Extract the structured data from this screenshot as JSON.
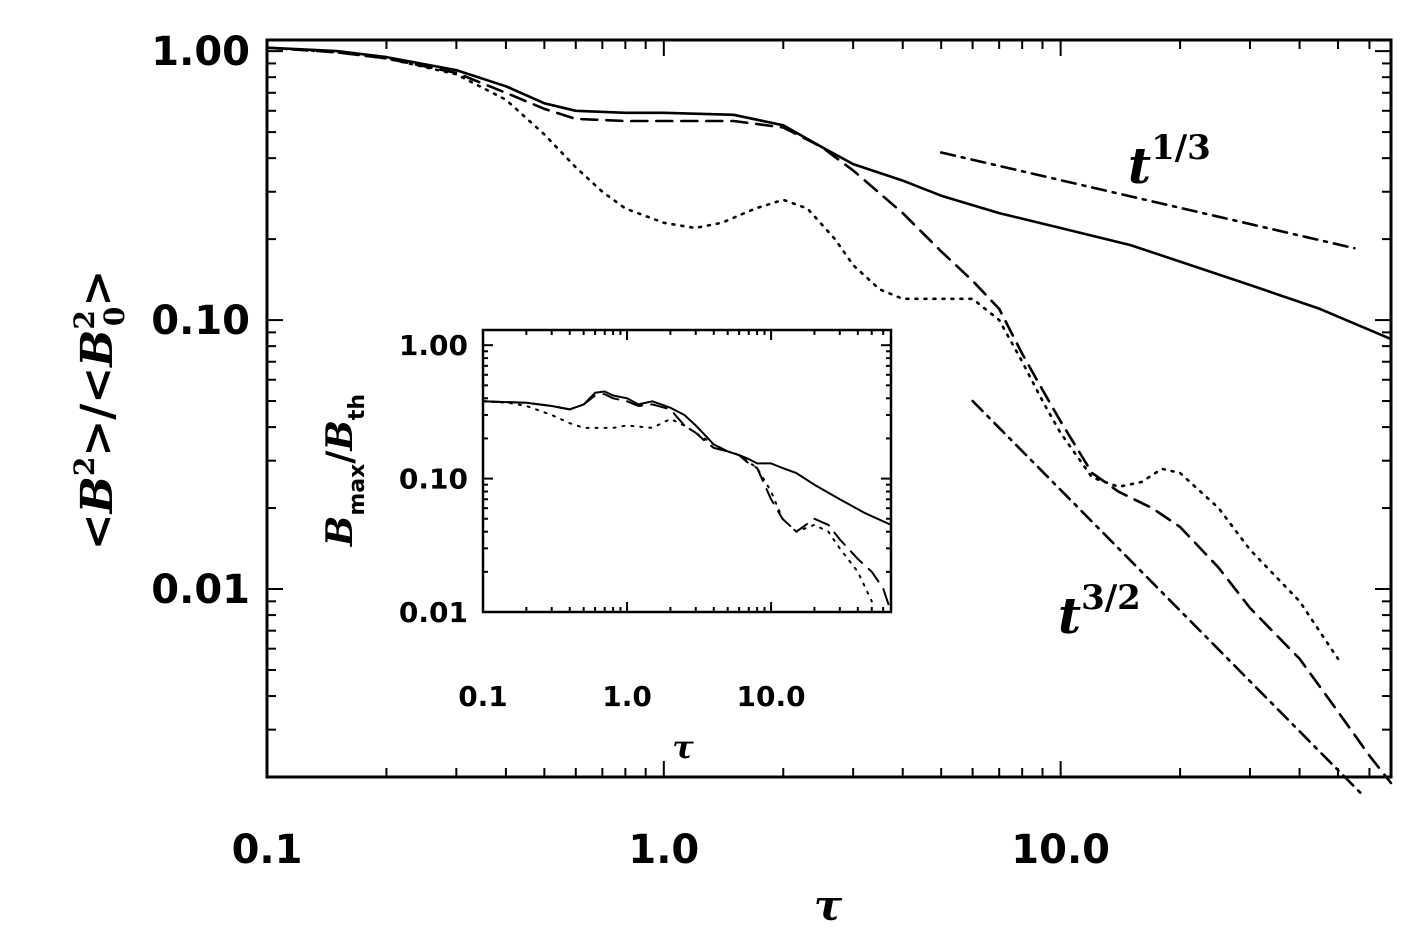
{
  "chart_data": [
    {
      "id": "main",
      "type": "line",
      "xscale": "log",
      "yscale": "log",
      "xlim": [
        0.1,
        68
      ],
      "ylim": [
        0.002,
        1.1
      ],
      "xticks": [
        0.1,
        1.0,
        10.0
      ],
      "xtick_labels": [
        "0.1",
        "1.0",
        "10.0"
      ],
      "yticks": [
        1.0,
        0.1,
        0.01
      ],
      "ytick_labels": [
        "1.00",
        "0.10",
        "0.01"
      ],
      "xlabel": "τ",
      "ylabel": "<B²>/<B₀²>",
      "series": [
        {
          "name": "solid",
          "dash": "solid",
          "x": [
            0.1,
            0.15,
            0.2,
            0.3,
            0.4,
            0.5,
            0.6,
            0.8,
            1.0,
            1.5,
            2.0,
            2.5,
            3.0,
            4.0,
            5.0,
            7.0,
            10.0,
            15.0,
            20.0,
            30.0,
            45.0,
            68.0
          ],
          "y": [
            1.03,
            1.0,
            0.95,
            0.85,
            0.74,
            0.64,
            0.6,
            0.59,
            0.59,
            0.58,
            0.53,
            0.44,
            0.38,
            0.33,
            0.29,
            0.25,
            0.22,
            0.19,
            0.165,
            0.135,
            0.11,
            0.085
          ]
        },
        {
          "name": "dashed",
          "dash": "dashed",
          "x": [
            0.1,
            0.15,
            0.2,
            0.3,
            0.4,
            0.5,
            0.6,
            0.8,
            1.0,
            1.5,
            2.0,
            2.5,
            3.0,
            4.0,
            5.0,
            6.0,
            7.0,
            8.0,
            9.0,
            10.0,
            12.0,
            14.0,
            17.0,
            20.0,
            25.0,
            30.0,
            40.0,
            50.0,
            60.0,
            68.0
          ],
          "y": [
            1.03,
            0.99,
            0.94,
            0.83,
            0.7,
            0.61,
            0.56,
            0.55,
            0.55,
            0.55,
            0.52,
            0.44,
            0.36,
            0.25,
            0.18,
            0.14,
            0.11,
            0.075,
            0.055,
            0.042,
            0.027,
            0.023,
            0.02,
            0.017,
            0.012,
            0.0085,
            0.0055,
            0.0035,
            0.0024,
            0.0019
          ]
        },
        {
          "name": "dotted",
          "dash": "dotted",
          "x": [
            0.1,
            0.15,
            0.2,
            0.3,
            0.4,
            0.5,
            0.6,
            0.7,
            0.8,
            1.0,
            1.2,
            1.4,
            1.7,
            2.0,
            2.3,
            2.7,
            3.0,
            3.5,
            4.0,
            5.0,
            6.0,
            7.0,
            8.0,
            9.0,
            10.0,
            12.0,
            14.0,
            16.0,
            18.0,
            20.0,
            25.0,
            30.0,
            40.0,
            50.0
          ],
          "y": [
            1.03,
            0.99,
            0.94,
            0.82,
            0.66,
            0.49,
            0.37,
            0.3,
            0.26,
            0.23,
            0.22,
            0.23,
            0.26,
            0.28,
            0.26,
            0.2,
            0.16,
            0.13,
            0.12,
            0.12,
            0.12,
            0.1,
            0.07,
            0.05,
            0.038,
            0.026,
            0.024,
            0.025,
            0.028,
            0.027,
            0.02,
            0.014,
            0.009,
            0.0055
          ]
        },
        {
          "name": "fit-t-1/3",
          "dash": "dashdot",
          "x": [
            5.0,
            55.0
          ],
          "y": [
            0.42,
            0.185
          ]
        },
        {
          "name": "fit-t-3/2",
          "dash": "dashdot",
          "x": [
            6.0,
            58.0
          ],
          "y": [
            0.05,
            0.0017
          ]
        }
      ],
      "annotations": [
        {
          "base": "t",
          "sup": "1/3"
        },
        {
          "base": "t",
          "sup": "3/2"
        }
      ]
    },
    {
      "id": "inset",
      "type": "line",
      "xscale": "log",
      "yscale": "log",
      "xlim": [
        0.1,
        68
      ],
      "ylim": [
        0.01,
        1.3
      ],
      "xticks": [
        0.1,
        1.0,
        10.0
      ],
      "xtick_labels": [
        "0.1",
        "1.0",
        "10.0"
      ],
      "yticks": [
        1.0,
        0.1,
        0.01
      ],
      "ytick_labels": [
        "1.00",
        "0.10",
        "0.01"
      ],
      "xlabel": "τ",
      "ylabel": "B_max/B_th",
      "series": [
        {
          "name": "solid",
          "dash": "solid",
          "x": [
            0.1,
            0.2,
            0.3,
            0.4,
            0.5,
            0.6,
            0.7,
            0.8,
            1.0,
            1.2,
            1.5,
            2.0,
            2.5,
            3.0,
            3.5,
            4.0,
            5.0,
            6.0,
            7.0,
            8.0,
            10.0,
            12.0,
            15.0,
            20.0,
            30.0,
            45.0,
            68.0
          ],
          "y": [
            0.38,
            0.37,
            0.35,
            0.33,
            0.36,
            0.44,
            0.45,
            0.42,
            0.4,
            0.36,
            0.38,
            0.34,
            0.3,
            0.25,
            0.21,
            0.18,
            0.16,
            0.15,
            0.14,
            0.13,
            0.13,
            0.12,
            0.11,
            0.09,
            0.07,
            0.055,
            0.045
          ]
        },
        {
          "name": "dashed",
          "dash": "dashed",
          "x": [
            0.1,
            0.2,
            0.3,
            0.4,
            0.5,
            0.6,
            0.7,
            0.8,
            1.0,
            1.2,
            1.5,
            2.0,
            2.5,
            3.0,
            3.5,
            4.0,
            5.0,
            6.0,
            7.0,
            8.0,
            10.0,
            12.0,
            15.0,
            20.0,
            25.0,
            30.0,
            40.0,
            50.0,
            60.0,
            68.0
          ],
          "y": [
            0.38,
            0.37,
            0.35,
            0.33,
            0.36,
            0.42,
            0.43,
            0.4,
            0.38,
            0.35,
            0.36,
            0.33,
            0.25,
            0.22,
            0.19,
            0.17,
            0.16,
            0.15,
            0.13,
            0.12,
            0.07,
            0.05,
            0.04,
            0.05,
            0.045,
            0.035,
            0.025,
            0.02,
            0.015,
            0.01
          ]
        },
        {
          "name": "dotted",
          "dash": "dotted",
          "x": [
            0.1,
            0.15,
            0.2,
            0.3,
            0.4,
            0.5,
            0.6,
            0.8,
            1.0,
            1.5,
            2.0,
            2.5,
            3.0,
            4.0,
            5.0,
            6.0,
            8.0,
            10.0,
            12.0,
            15.0,
            20.0,
            25.0,
            30.0,
            40.0,
            50.0
          ],
          "y": [
            0.38,
            0.37,
            0.35,
            0.3,
            0.26,
            0.24,
            0.24,
            0.24,
            0.25,
            0.24,
            0.28,
            0.25,
            0.22,
            0.18,
            0.16,
            0.15,
            0.12,
            0.08,
            0.05,
            0.04,
            0.045,
            0.04,
            0.03,
            0.02,
            0.012
          ]
        }
      ]
    }
  ]
}
